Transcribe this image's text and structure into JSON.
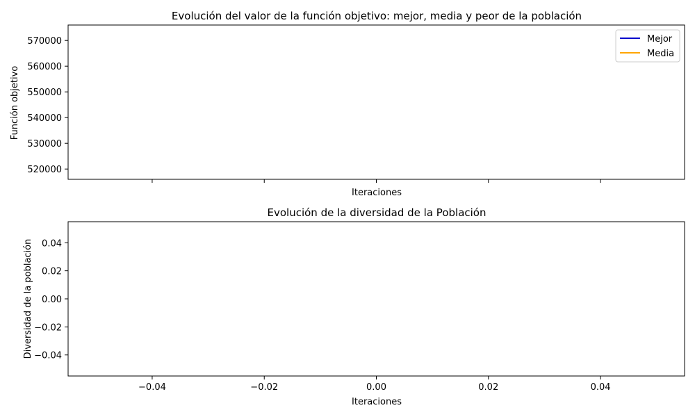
{
  "chart_data": [
    {
      "type": "line",
      "title": "Evolución del valor de la función objetivo: mejor, media y peor de la población",
      "xlabel": "Iteraciones",
      "ylabel": "Función objetivo",
      "xlim": [
        -0.055,
        0.055
      ],
      "ylim": [
        516000,
        576000
      ],
      "x_tick_values": [
        -0.04,
        -0.02,
        0.0,
        0.02,
        0.04
      ],
      "x_tick_labels_shown": false,
      "y_ticks": [
        "520000",
        "530000",
        "540000",
        "550000",
        "560000",
        "570000"
      ],
      "y_tick_values": [
        520000,
        530000,
        540000,
        550000,
        560000,
        570000
      ],
      "grid": false,
      "legend_position": "upper-right",
      "series": [
        {
          "name": "Mejor",
          "color": "#0000cc",
          "x": [],
          "y": []
        },
        {
          "name": "Media",
          "color": "#ffa500",
          "x": [],
          "y": []
        }
      ]
    },
    {
      "type": "line",
      "title": "Evolución de la diversidad de la Población",
      "xlabel": "Iteraciones",
      "ylabel": "Diversidad de la población",
      "xlim": [
        -0.055,
        0.055
      ],
      "ylim": [
        -0.055,
        0.055
      ],
      "x_ticks": [
        "−0.04",
        "−0.02",
        "0.00",
        "0.02",
        "0.04"
      ],
      "x_tick_values": [
        -0.04,
        -0.02,
        0.0,
        0.02,
        0.04
      ],
      "y_ticks": [
        "−0.04",
        "−0.02",
        "0.00",
        "0.02",
        "0.04"
      ],
      "y_tick_values": [
        -0.04,
        -0.02,
        0.0,
        0.02,
        0.04
      ],
      "grid": false,
      "series": [
        {
          "x": [],
          "y": []
        }
      ]
    }
  ]
}
